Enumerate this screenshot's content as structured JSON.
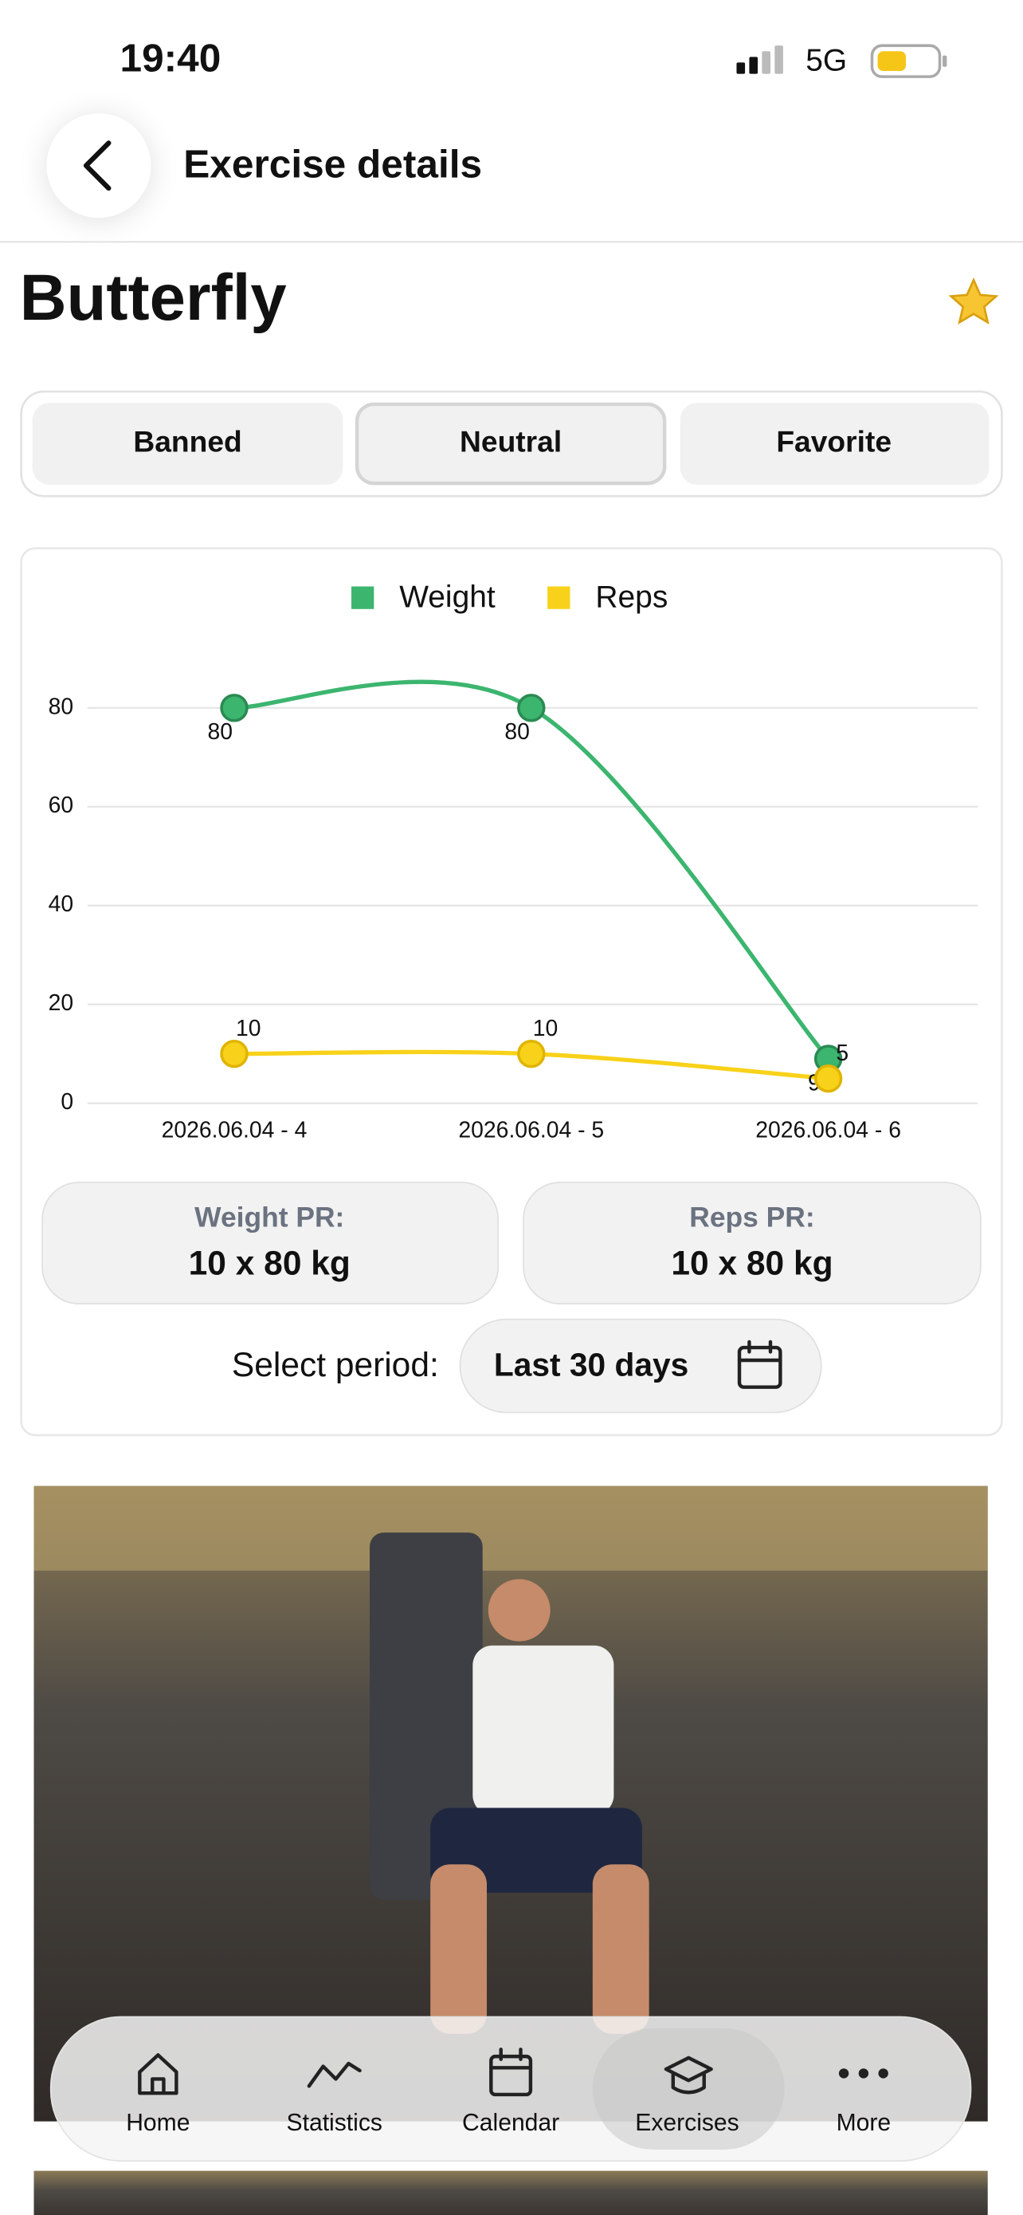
{
  "status_bar": {
    "time": "19:40",
    "network": "5G"
  },
  "header": {
    "title": "Exercise details"
  },
  "exercise": {
    "name": "Butterfly"
  },
  "preference_options": [
    "Banned",
    "Neutral",
    "Favorite"
  ],
  "chart_data": {
    "type": "line",
    "categories": [
      "2026.06.04 - 4",
      "2026.06.04 - 5",
      "2026.06.04 - 6"
    ],
    "series": [
      {
        "name": "Weight",
        "color": "#3cb56f",
        "values": [
          80,
          80,
          9
        ]
      },
      {
        "name": "Reps",
        "color": "#f8d21a",
        "values": [
          10,
          10,
          5
        ]
      }
    ],
    "ylim": [
      0,
      88
    ],
    "yticks": [
      0,
      20,
      40,
      60,
      80
    ],
    "grid": true
  },
  "personal_records": [
    {
      "label": "Weight PR:",
      "value": "10 x 80 kg"
    },
    {
      "label": "Reps PR:",
      "value": "10 x 80 kg"
    }
  ],
  "period": {
    "label": "Select period:",
    "value": "Last 30 days"
  },
  "nav": [
    "Home",
    "Statistics",
    "Calendar",
    "Exercises",
    "More"
  ]
}
